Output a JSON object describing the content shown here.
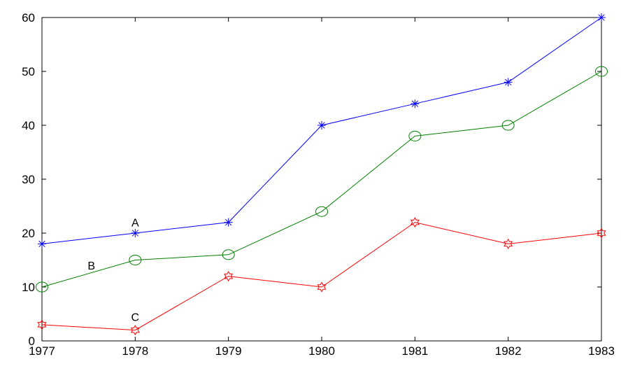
{
  "chart_data": {
    "type": "line",
    "title": "",
    "xlabel": "",
    "ylabel": "",
    "x": [
      1977,
      1978,
      1979,
      1980,
      1981,
      1982,
      1983
    ],
    "xlim": [
      1977,
      1983
    ],
    "ylim": [
      0,
      60
    ],
    "x_ticks": [
      "1977",
      "1978",
      "1979",
      "1980",
      "1981",
      "1982",
      "1983"
    ],
    "y_ticks": [
      "0",
      "10",
      "20",
      "30",
      "40",
      "50",
      "60"
    ],
    "grid": false,
    "legend": "none",
    "series": [
      {
        "label": "A",
        "color": "#0000ff",
        "marker": "asterisk",
        "values": [
          18,
          20,
          22,
          40,
          44,
          48,
          60
        ],
        "label_at": {
          "x": 1978,
          "y": 22
        }
      },
      {
        "label": "B",
        "color": "#008000",
        "marker": "circle",
        "values": [
          10,
          15,
          16,
          24,
          38,
          40,
          50
        ],
        "label_at": {
          "x": 1977.53,
          "y": 14
        }
      },
      {
        "label": "C",
        "color": "#ff0000",
        "marker": "star",
        "values": [
          3,
          2,
          12,
          10,
          22,
          18,
          20
        ],
        "label_at": {
          "x": 1978,
          "y": 4.5
        }
      }
    ]
  }
}
